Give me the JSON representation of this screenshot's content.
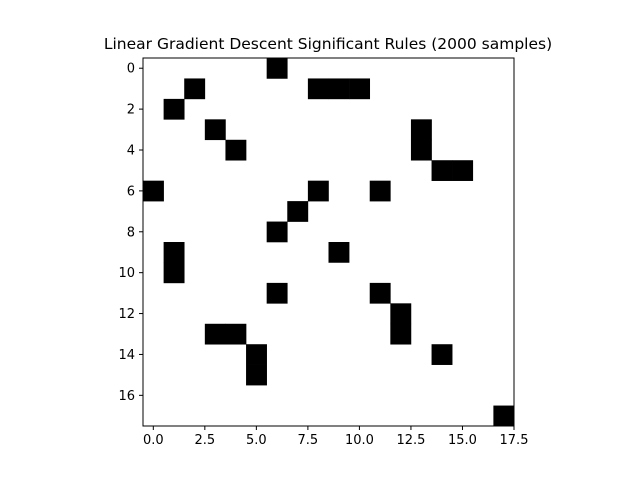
{
  "chart_data": {
    "type": "heatmap",
    "title": "Linear Gradient Descent Significant Rules (2000 samples)",
    "xlabel": "",
    "ylabel": "",
    "colormap": "binary",
    "colors": {
      "on": "#000000",
      "off": "#ffffff"
    },
    "rows": 18,
    "cols": 18,
    "xlim": [
      -0.5,
      17.5
    ],
    "ylim": [
      17.5,
      -0.5
    ],
    "x_ticks": [
      0.0,
      2.5,
      5.0,
      7.5,
      10.0,
      12.5,
      15.0,
      17.5
    ],
    "x_tick_labels": [
      "0.0",
      "2.5",
      "5.0",
      "7.5",
      "10.0",
      "12.5",
      "15.0",
      "17.5"
    ],
    "y_ticks": [
      0,
      2,
      4,
      6,
      8,
      10,
      12,
      14,
      16
    ],
    "y_tick_labels": [
      "0",
      "2",
      "4",
      "6",
      "8",
      "10",
      "12",
      "14",
      "16"
    ],
    "cells": [
      [
        0,
        6
      ],
      [
        1,
        2
      ],
      [
        1,
        8
      ],
      [
        1,
        9
      ],
      [
        1,
        10
      ],
      [
        2,
        1
      ],
      [
        3,
        3
      ],
      [
        3,
        13
      ],
      [
        4,
        4
      ],
      [
        4,
        13
      ],
      [
        5,
        14
      ],
      [
        5,
        15
      ],
      [
        6,
        0
      ],
      [
        6,
        8
      ],
      [
        6,
        11
      ],
      [
        7,
        7
      ],
      [
        8,
        6
      ],
      [
        9,
        1
      ],
      [
        9,
        9
      ],
      [
        10,
        1
      ],
      [
        11,
        6
      ],
      [
        11,
        11
      ],
      [
        12,
        12
      ],
      [
        13,
        3
      ],
      [
        13,
        4
      ],
      [
        13,
        12
      ],
      [
        14,
        5
      ],
      [
        14,
        14
      ],
      [
        15,
        5
      ],
      [
        17,
        17
      ]
    ]
  }
}
